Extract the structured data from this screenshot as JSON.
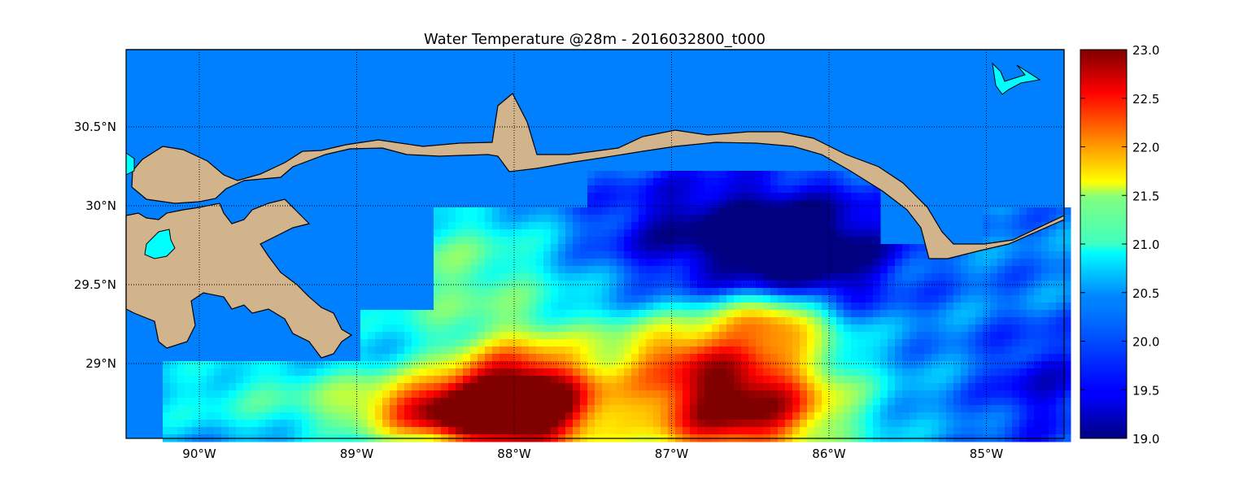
{
  "title": "Water Temperature @28m - 2016032800_t000",
  "map": {
    "lon_range": [
      -90.5,
      -84.5
    ],
    "lat_range": [
      28.55,
      31.0
    ],
    "lon_ticks": [
      {
        "value": -90,
        "label": "90°W"
      },
      {
        "value": -89,
        "label": "89°W"
      },
      {
        "value": -88,
        "label": "88°W"
      },
      {
        "value": -87,
        "label": "87°W"
      },
      {
        "value": -86,
        "label": "86°W"
      },
      {
        "value": -85,
        "label": "85°W"
      }
    ],
    "lat_ticks": [
      {
        "value": 30.5,
        "label": "30.5°N"
      },
      {
        "value": 30.0,
        "label": "30°N"
      },
      {
        "value": 29.5,
        "label": "29.5°N"
      },
      {
        "value": 29.0,
        "label": "29°N"
      }
    ],
    "grid": true,
    "grid_style": "dotted",
    "land_color": "#d2b48c",
    "lake_color": "#00ffff",
    "coast_fill_color": "#0080ff"
  },
  "colorbar": {
    "min": 19.0,
    "max": 23.0,
    "colormap": "jet",
    "ticks": [
      "23.0",
      "22.5",
      "22.0",
      "21.5",
      "21.0",
      "20.5",
      "20.0",
      "19.5",
      "19.0"
    ]
  },
  "chart_data": {
    "type": "heatmap",
    "title": "Water Temperature @28m - 2016032800_t000",
    "value_range": [
      19.0,
      23.0
    ],
    "features": [
      {
        "region": "warm loop current intrusion west",
        "center_lon": -88.0,
        "center_lat": 28.8,
        "value": 23.0
      },
      {
        "region": "warm loop current intrusion east",
        "center_lon": -86.8,
        "center_lat": 28.8,
        "value": 23.0
      },
      {
        "region": "cold eddy",
        "center_lon": -86.7,
        "center_lat": 29.8,
        "value": 19.0
      },
      {
        "region": "shelf water west",
        "center_lon": -88.2,
        "center_lat": 29.8,
        "value": 20.8
      },
      {
        "region": "east shelf",
        "center_lon": -85.0,
        "center_lat": 29.0,
        "value": 19.7
      }
    ]
  }
}
